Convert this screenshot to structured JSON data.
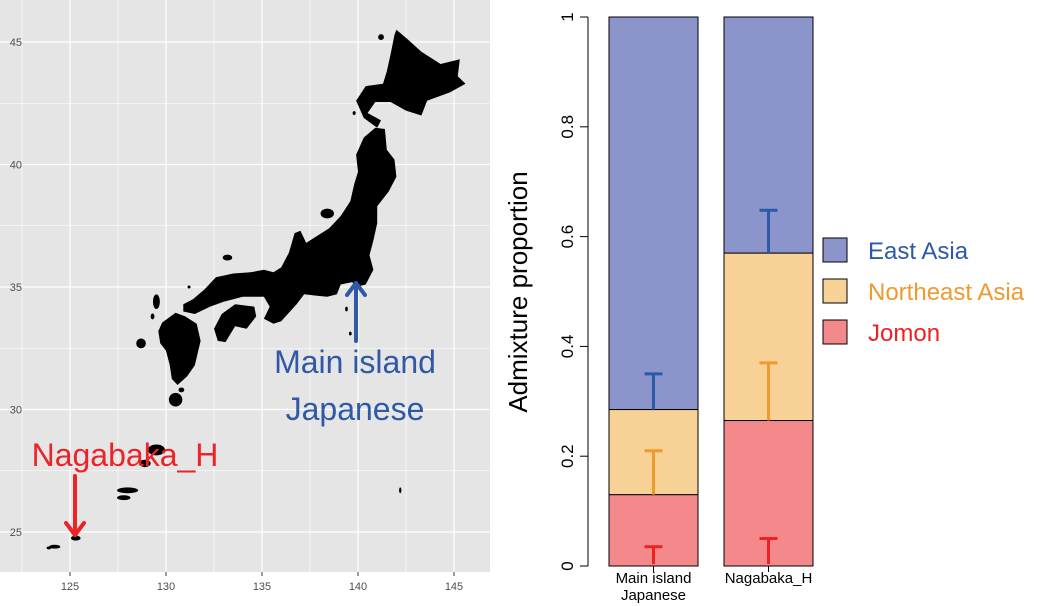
{
  "colors": {
    "panel_bg": "#e5e5e5",
    "grid": "#ffffff",
    "land": "#000000",
    "east_asia_fill": "#8c95cb",
    "northeast_asia_fill": "#f7d195",
    "jomon_fill": "#f4898c",
    "east_asia_err": "#2b5aa6",
    "northeast_asia_err": "#ee9a2e",
    "jomon_err": "#ed2124",
    "annotation_blue": "#2f58a6",
    "annotation_red": "#ec2328"
  },
  "map": {
    "x_ticks": [
      "125",
      "130",
      "135",
      "140",
      "145"
    ],
    "y_ticks": [
      "45",
      "40",
      "35",
      "30",
      "25"
    ],
    "xlim": [
      123,
      146
    ],
    "ylim": [
      23.8,
      46.5
    ],
    "annotations": [
      {
        "line1": "Main island",
        "line2": "Japanese",
        "lon": 139.8,
        "lat": 35.4,
        "icon": "arrow-up"
      },
      {
        "line1": "Nagabaka_H",
        "line2": "",
        "lon": 125.2,
        "lat": 24.7,
        "icon": "arrow-down"
      }
    ]
  },
  "chart_data": {
    "type": "bar",
    "stacked": true,
    "ylabel": "Admixture proportion",
    "ylim": [
      0,
      1
    ],
    "y_ticks": [
      "0",
      "0.2",
      "0.4",
      "0.6",
      "0.8",
      "1"
    ],
    "categories": [
      "Main island\nJapanese",
      "Nagabaka_H"
    ],
    "category_lines": [
      [
        "Main island",
        "Japanese"
      ],
      [
        "Nagabaka_H"
      ]
    ],
    "series": [
      {
        "name": "Jomon",
        "values": [
          0.13,
          0.265
        ],
        "err_top": [
          0.035,
          0.05
        ]
      },
      {
        "name": "Northeast Asia",
        "values": [
          0.155,
          0.305
        ],
        "err_top": [
          0.21,
          0.37
        ]
      },
      {
        "name": "East Asia",
        "values": [
          0.715,
          0.43
        ],
        "err_top": [
          0.35,
          0.648
        ]
      }
    ],
    "legend": {
      "position": "right",
      "entries": [
        "East Asia",
        "Northeast Asia",
        "Jomon"
      ]
    }
  }
}
